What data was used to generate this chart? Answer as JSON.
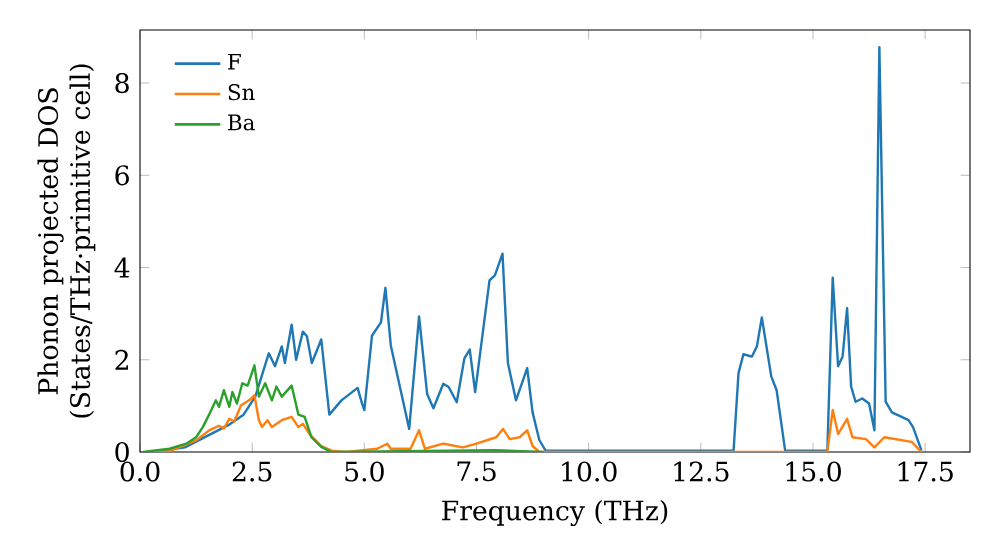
{
  "chart_data": {
    "type": "line",
    "xlabel": "Frequency (THz)",
    "ylabel": "Phonon projected DOS (States/THz·primitive cell)",
    "xlim": [
      0,
      18.5
    ],
    "ylim": [
      0,
      9.15
    ],
    "xticks": [
      {
        "value": 0,
        "label": "0.0"
      },
      {
        "value": 2.5,
        "label": "2.5"
      },
      {
        "value": 5,
        "label": "5.0"
      },
      {
        "value": 7.5,
        "label": "7.5"
      },
      {
        "value": 10,
        "label": "10.0"
      },
      {
        "value": 12.5,
        "label": "12.5"
      },
      {
        "value": 15,
        "label": "15.0"
      },
      {
        "value": 17.5,
        "label": "17.5"
      }
    ],
    "yticks": [
      0,
      2,
      4,
      6,
      8
    ],
    "legend": "top left",
    "grid": false,
    "marker": "none",
    "line_style": "solid",
    "series": [
      {
        "name": "F",
        "color": "#1f77b4",
        "x": [
          0.3,
          1.0,
          1.5,
          2.0,
          2.3,
          2.57,
          2.87,
          3.01,
          3.16,
          3.23,
          3.38,
          3.48,
          3.63,
          3.72,
          3.83,
          4.04,
          4.22,
          4.49,
          4.85,
          4.95,
          5.0,
          5.17,
          5.37,
          5.47,
          5.59,
          6.0,
          6.22,
          6.4,
          6.54,
          6.76,
          6.88,
          7.06,
          7.23,
          7.35,
          7.47,
          7.79,
          7.91,
          8.08,
          8.2,
          8.38,
          8.63,
          8.75,
          8.9,
          9.04,
          13.23,
          13.34,
          13.45,
          13.64,
          13.75,
          13.86,
          14.07,
          14.19,
          14.38,
          15.32,
          15.44,
          15.56,
          15.66,
          15.76,
          15.85,
          15.95,
          16.1,
          16.25,
          16.37,
          16.48,
          16.62,
          16.76,
          17.13,
          17.23,
          17.42
        ],
        "values": [
          0,
          0.1,
          0.35,
          0.6,
          0.8,
          1.2,
          2.14,
          1.86,
          2.29,
          1.93,
          2.76,
          2.0,
          2.61,
          2.51,
          1.93,
          2.44,
          0.81,
          1.12,
          1.39,
          1.05,
          0.91,
          2.52,
          2.81,
          3.56,
          2.31,
          0.5,
          2.94,
          1.26,
          0.95,
          1.48,
          1.41,
          1.08,
          2.03,
          2.22,
          1.3,
          3.72,
          3.83,
          4.3,
          1.93,
          1.12,
          1.82,
          0.86,
          0.26,
          0.03,
          0.03,
          1.71,
          2.12,
          2.07,
          2.29,
          2.92,
          1.64,
          1.34,
          0.03,
          0.03,
          3.78,
          1.86,
          2.07,
          3.12,
          1.42,
          1.09,
          1.16,
          1.05,
          0.47,
          8.78,
          1.09,
          0.86,
          0.69,
          0.54,
          0.03
        ]
      },
      {
        "name": "Sn",
        "color": "#ff7f0e",
        "x": [
          0.3,
          0.66,
          1.25,
          1.54,
          1.76,
          1.87,
          1.99,
          2.1,
          2.25,
          2.43,
          2.55,
          2.65,
          2.72,
          2.84,
          2.94,
          3.16,
          3.38,
          3.53,
          3.63,
          3.78,
          4.04,
          4.27,
          4.6,
          5.29,
          5.51,
          5.59,
          6.03,
          6.22,
          6.35,
          6.76,
          7.2,
          7.5,
          7.94,
          8.09,
          8.24,
          8.46,
          8.63,
          8.75,
          8.9,
          15.32,
          15.44,
          15.56,
          15.76,
          15.88,
          16.18,
          16.37,
          16.59,
          17.2,
          17.42
        ],
        "values": [
          0,
          0.02,
          0.25,
          0.47,
          0.57,
          0.51,
          0.72,
          0.66,
          1.01,
          1.12,
          1.23,
          0.69,
          0.54,
          0.69,
          0.54,
          0.69,
          0.76,
          0.54,
          0.61,
          0.39,
          0.13,
          0.03,
          0,
          0.07,
          0.18,
          0.07,
          0.07,
          0.47,
          0.07,
          0.18,
          0.1,
          0.18,
          0.32,
          0.5,
          0.28,
          0.32,
          0.47,
          0.13,
          0,
          0,
          0.91,
          0.39,
          0.72,
          0.32,
          0.28,
          0.1,
          0.32,
          0.22,
          0
        ]
      },
      {
        "name": "Ba",
        "color": "#2ca02c",
        "x": [
          0.07,
          0.66,
          1.03,
          1.25,
          1.4,
          1.54,
          1.69,
          1.76,
          1.87,
          1.99,
          2.06,
          2.16,
          2.28,
          2.4,
          2.55,
          2.65,
          2.79,
          2.94,
          3.04,
          3.16,
          3.38,
          3.53,
          3.67,
          3.82,
          4.04,
          4.27,
          7.9,
          9.0
        ],
        "values": [
          0,
          0.07,
          0.18,
          0.32,
          0.54,
          0.81,
          1.12,
          0.98,
          1.34,
          0.98,
          1.3,
          1.05,
          1.49,
          1.44,
          1.88,
          1.2,
          1.49,
          1.12,
          1.42,
          1.2,
          1.44,
          0.81,
          0.76,
          0.32,
          0.11,
          0,
          0.04,
          0
        ]
      }
    ]
  }
}
